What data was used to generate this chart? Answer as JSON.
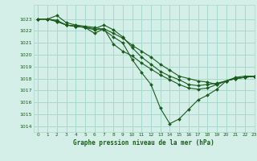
{
  "title": "Graphe pression niveau de la mer (hPa)",
  "bg_color": "#d4eee8",
  "grid_color": "#a8d8cc",
  "line_color": "#1a5c1a",
  "xlim": [
    -0.5,
    23
  ],
  "ylim": [
    1013.5,
    1024.2
  ],
  "yticks": [
    1014,
    1015,
    1016,
    1017,
    1018,
    1019,
    1020,
    1021,
    1022,
    1023
  ],
  "xticks": [
    0,
    1,
    2,
    3,
    4,
    5,
    6,
    7,
    8,
    9,
    10,
    11,
    12,
    13,
    14,
    15,
    16,
    17,
    18,
    19,
    20,
    21,
    22,
    23
  ],
  "series": [
    {
      "x": [
        0,
        1,
        2,
        3,
        4,
        5,
        6,
        7,
        8,
        9,
        10,
        11,
        12,
        13,
        14,
        15,
        16,
        17,
        18,
        19,
        20,
        21,
        22,
        23
      ],
      "y": [
        1023.0,
        1023.0,
        1023.3,
        1022.7,
        1022.5,
        1022.4,
        1022.3,
        1022.1,
        1021.5,
        1021.0,
        1019.6,
        1018.5,
        1017.5,
        1015.5,
        1014.2,
        1014.6,
        1015.4,
        1016.2,
        1016.6,
        1017.1,
        1017.8,
        1018.1,
        1018.2,
        1018.2
      ]
    },
    {
      "x": [
        0,
        1,
        2,
        3,
        4,
        5,
        6,
        7,
        8,
        9,
        10,
        11,
        12,
        13,
        14,
        15,
        16,
        17,
        18,
        19,
        20,
        21,
        22,
        23
      ],
      "y": [
        1023.0,
        1023.0,
        1022.8,
        1022.5,
        1022.4,
        1022.3,
        1022.1,
        1022.2,
        1021.8,
        1021.4,
        1020.8,
        1020.3,
        1019.8,
        1019.2,
        1018.7,
        1018.2,
        1018.0,
        1017.8,
        1017.7,
        1017.5,
        1017.8,
        1018.0,
        1018.1,
        1018.2
      ]
    },
    {
      "x": [
        0,
        1,
        2,
        3,
        4,
        5,
        6,
        7,
        8,
        9,
        10,
        11,
        12,
        13,
        14,
        15,
        16,
        17,
        18,
        19,
        20,
        21,
        22,
        23
      ],
      "y": [
        1023.0,
        1023.0,
        1022.9,
        1022.5,
        1022.4,
        1022.3,
        1022.2,
        1022.5,
        1022.1,
        1021.5,
        1020.6,
        1019.8,
        1019.2,
        1018.6,
        1018.2,
        1017.9,
        1017.5,
        1017.4,
        1017.5,
        1017.6,
        1017.8,
        1018.0,
        1018.1,
        1018.2
      ]
    },
    {
      "x": [
        0,
        1,
        2,
        3,
        4,
        5,
        6,
        7,
        8,
        9,
        10,
        11,
        12,
        13,
        14,
        15,
        16,
        17,
        18,
        19,
        20,
        21,
        22,
        23
      ],
      "y": [
        1023.0,
        1023.0,
        1022.8,
        1022.5,
        1022.4,
        1022.3,
        1021.8,
        1022.2,
        1020.9,
        1020.3,
        1019.9,
        1019.3,
        1018.8,
        1018.3,
        1017.9,
        1017.5,
        1017.2,
        1017.1,
        1017.2,
        1017.5,
        1017.8,
        1018.0,
        1018.1,
        1018.2
      ]
    }
  ]
}
